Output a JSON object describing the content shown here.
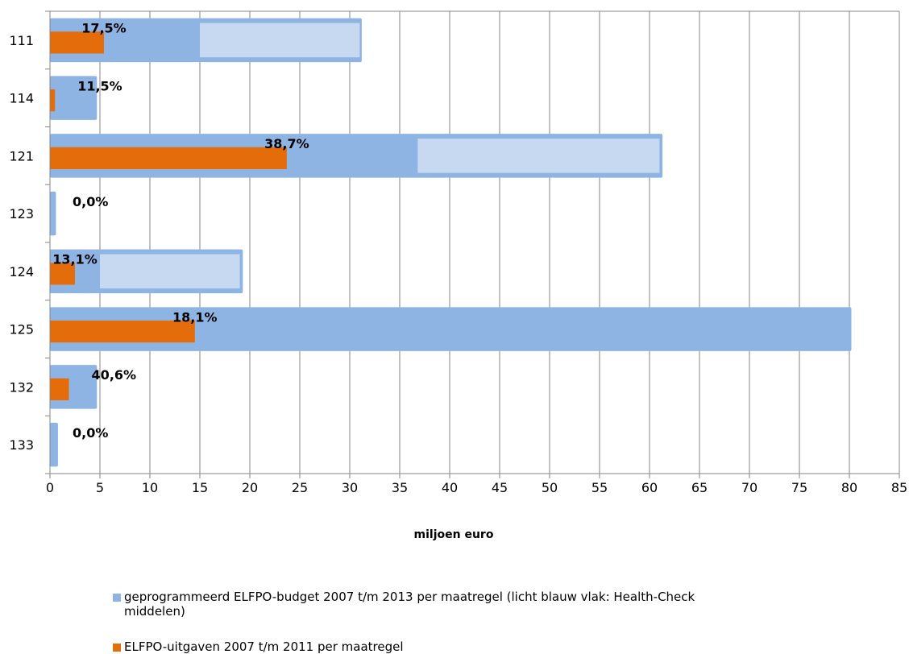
{
  "chart_data": {
    "type": "bar",
    "orientation": "horizontal",
    "categories": [
      "111",
      "114",
      "121",
      "123",
      "124",
      "125",
      "132",
      "133"
    ],
    "series": [
      {
        "name": "geprogrammeerd ELFPO-budget 2007 t/m 2013 per maatregel (licht blauw vlak: Health-Check middelen)",
        "values": [
          31.2,
          4.7,
          61.3,
          0.6,
          19.3,
          80.2,
          4.7,
          0.8
        ],
        "color": "#8eb4e3"
      },
      {
        "name": "Health-Check middelen",
        "ranges": [
          [
            15,
            31
          ],
          null,
          [
            36.8,
            61
          ],
          null,
          [
            5,
            19
          ],
          null,
          null,
          null
        ],
        "color": "#c6d9f1"
      },
      {
        "name": "ELFPO-uitgaven 2007 t/m 2011 per maatregel",
        "values": [
          5.4,
          0.5,
          23.7,
          0,
          2.5,
          14.5,
          1.9,
          0
        ],
        "color": "#e46c0a"
      }
    ],
    "data_labels": [
      "17,5%",
      "11,5%",
      "38,7%",
      "0,0%",
      "13,1%",
      "18,1%",
      "40,6%",
      "0,0%"
    ],
    "xlabel": "miljoen euro",
    "xlim": [
      0,
      85
    ],
    "xticks": [
      0,
      5,
      10,
      15,
      20,
      25,
      30,
      35,
      40,
      45,
      50,
      55,
      60,
      65,
      70,
      75,
      80,
      85
    ],
    "grid": "vertical",
    "legend_position": "bottom"
  },
  "legend": {
    "budget": "geprogrammeerd ELFPO-budget 2007 t/m 2013 per maatregel (licht blauw vlak: Health-Check middelen)",
    "spend": "ELFPO-uitgaven 2007 t/m 2011 per maatregel"
  },
  "colors": {
    "budget": "#8eb4e3",
    "healthcheck": "#c6d9f1",
    "spend": "#e46c0a",
    "grid": "#868686"
  }
}
